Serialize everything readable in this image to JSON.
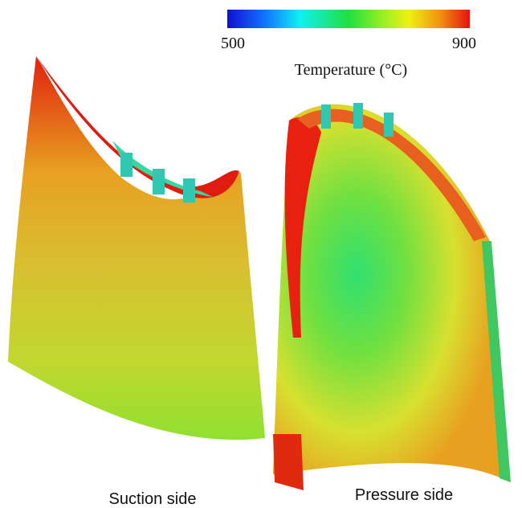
{
  "colorbar": {
    "label": "Temperature (°C)",
    "min": 500,
    "max": 900
  },
  "panels": [
    {
      "caption": "Suction side"
    },
    {
      "caption": "Pressure side"
    }
  ]
}
